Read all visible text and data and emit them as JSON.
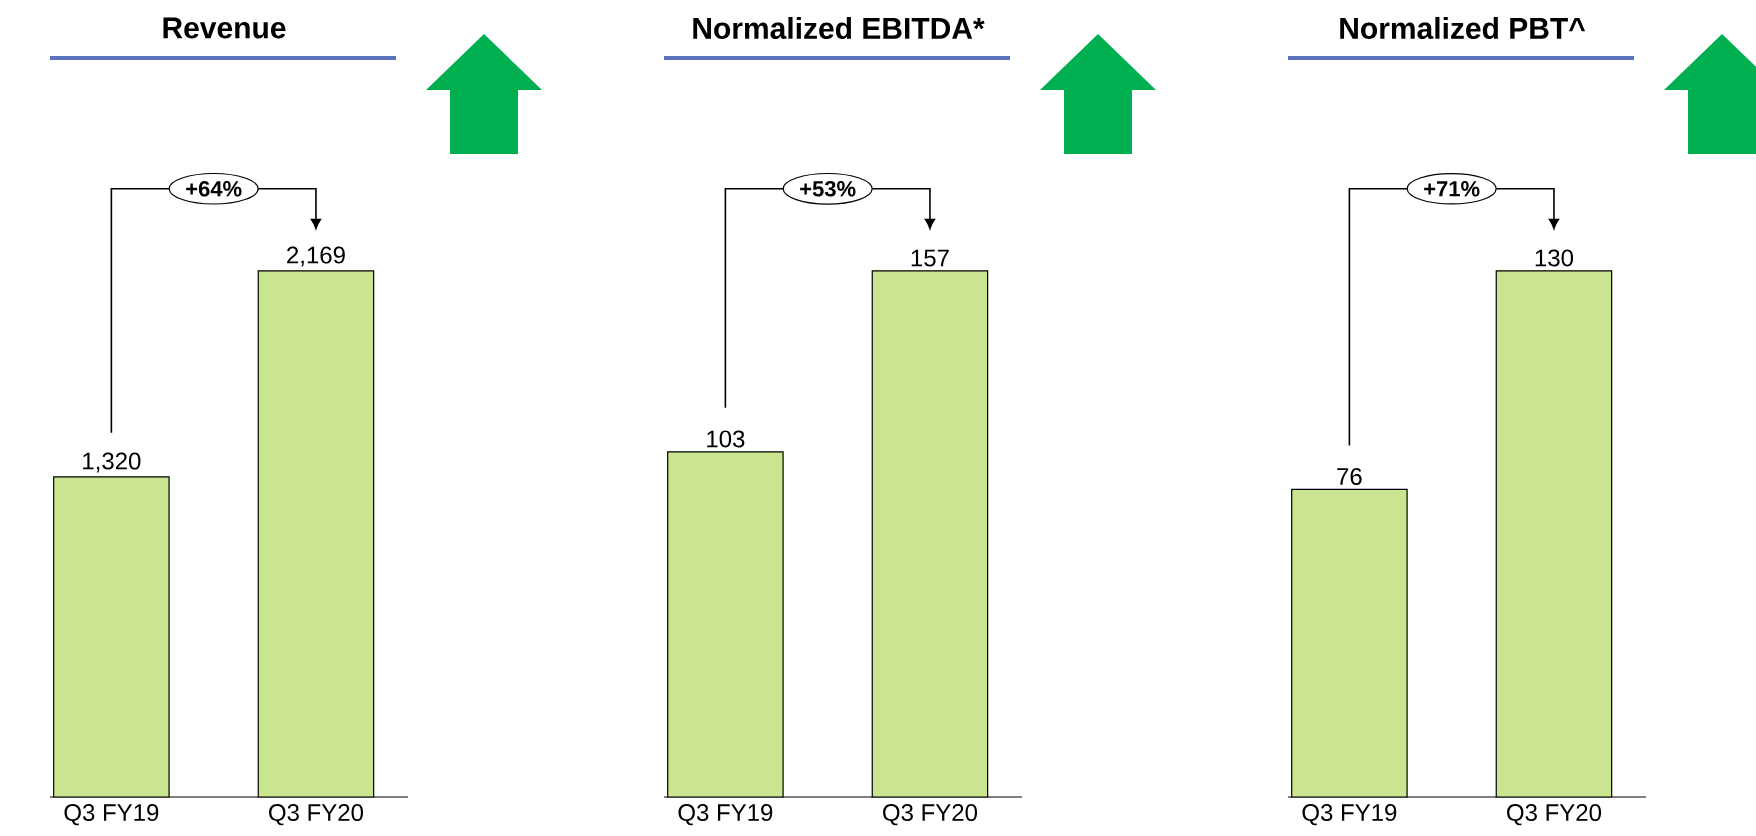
{
  "chart_data": [
    {
      "type": "bar",
      "title": "Revenue",
      "categories": [
        "Q3 FY19",
        "Q3 FY20"
      ],
      "values": [
        1320,
        2169
      ],
      "value_labels": [
        "1,320",
        "2,169"
      ],
      "color": "#c9e58f",
      "annotations": [
        "+64%"
      ]
    },
    {
      "type": "bar",
      "title": "Normalized EBITDA*",
      "categories": [
        "Q3 FY19",
        "Q3 FY20"
      ],
      "values": [
        103,
        157
      ],
      "value_labels": [
        "103",
        "157"
      ],
      "color": "#c9e58f",
      "annotations": [
        "+53%"
      ]
    },
    {
      "type": "bar",
      "title": "Normalized PBT^",
      "categories": [
        "Q3 FY19",
        "Q3 FY20"
      ],
      "values": [
        76,
        130
      ],
      "value_labels": [
        "76",
        "130"
      ],
      "color": "#c9e58f",
      "annotations": [
        "+71%"
      ]
    }
  ]
}
